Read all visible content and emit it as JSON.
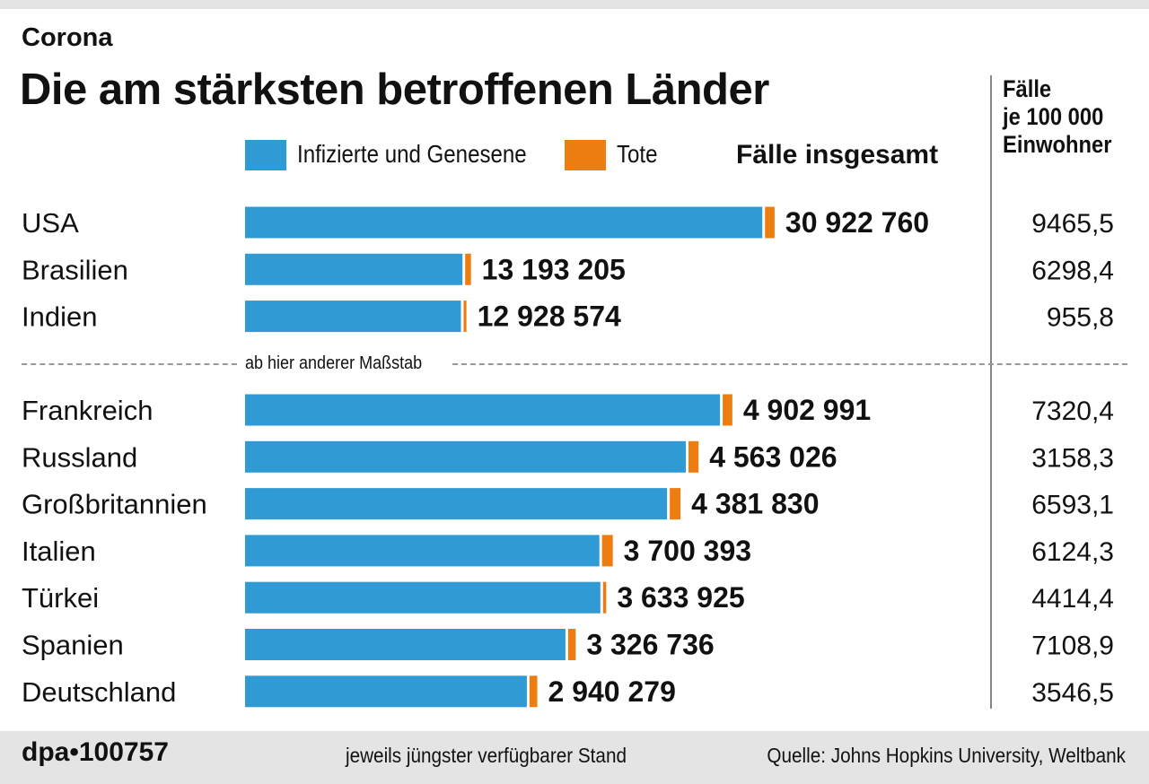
{
  "kicker": "Corona",
  "title": "Die am stärksten betroffenen Länder",
  "legend": {
    "infected_label": "Infizierte und Genesene",
    "deaths_label": "Tote",
    "infected_color": "#2f9ad3",
    "deaths_color": "#ee7d11"
  },
  "columns": {
    "total_header": "Fälle insgesamt",
    "rate_header_lines": [
      "Fälle",
      "je 100 000",
      "Einwohner"
    ]
  },
  "scale_note": "ab hier anderer Maßstab",
  "footer": {
    "id": "dpa•100757",
    "note": "jeweils jüngster verfügbarer Stand",
    "source": "Quelle: Johns Hopkins University, Weltbank"
  },
  "chart_data": {
    "type": "bar",
    "orientation": "horizontal",
    "stacked": true,
    "title": "Die am stärksten betroffenen Länder",
    "series": [
      {
        "name": "Infizierte und Genesene",
        "color": "#2f9ad3"
      },
      {
        "name": "Tote",
        "color": "#ee7d11"
      }
    ],
    "groups": [
      {
        "scale_max": 32500000,
        "rows": [
          {
            "country": "USA",
            "total": 30922760,
            "total_label": "30 922 760",
            "deaths": 561000,
            "per100k": "9465,5"
          },
          {
            "country": "Brasilien",
            "total": 13193205,
            "total_label": "13 193 205",
            "deaths": 340000,
            "per100k": "6298,4"
          },
          {
            "country": "Indien",
            "total": 12928574,
            "total_label": "12 928 574",
            "deaths": 166000,
            "per100k": "955,8"
          }
        ]
      },
      {
        "scale_max": 5600000,
        "rows": [
          {
            "country": "Frankreich",
            "total": 4902991,
            "total_label": "4 902 991",
            "deaths": 97000,
            "per100k": "7320,4"
          },
          {
            "country": "Russland",
            "total": 4563026,
            "total_label": "4 563 026",
            "deaths": 101000,
            "per100k": "3158,3"
          },
          {
            "country": "Großbritannien",
            "total": 4381830,
            "total_label": "4 381 830",
            "deaths": 127000,
            "per100k": "6593,1"
          },
          {
            "country": "Italien",
            "total": 3700393,
            "total_label": "3 700 393",
            "deaths": 112000,
            "per100k": "6124,3"
          },
          {
            "country": "Türkei",
            "total": 3633925,
            "total_label": "3 633 925",
            "deaths": 32000,
            "per100k": "4414,4"
          },
          {
            "country": "Spanien",
            "total": 3326736,
            "total_label": "3 326 736",
            "deaths": 76000,
            "per100k": "7108,9"
          },
          {
            "country": "Deutschland",
            "total": 2940279,
            "total_label": "2 940 279",
            "deaths": 78000,
            "per100k": "3546,5"
          }
        ]
      }
    ]
  }
}
